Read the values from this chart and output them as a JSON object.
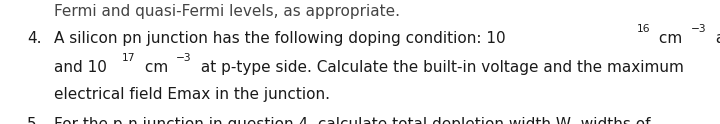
{
  "background_color": "#ffffff",
  "top_text": "Fermi and quasi-Fermi levels, as appropriate.",
  "item4_number": "4.",
  "item4_line3": "electrical field Emax in the junction.",
  "item5_number": "5.",
  "item5_line1": "For the p-n junction in question 4, calculate total depletion width W, widths of",
  "font_size": 11.0,
  "text_color": "#1a1a1a",
  "top_text_color": "#444444",
  "font_family": "DejaVu Sans"
}
